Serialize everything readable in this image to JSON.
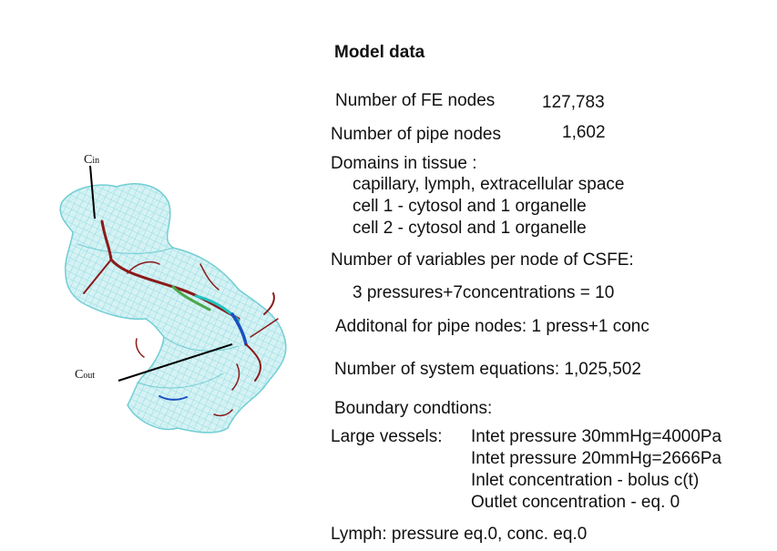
{
  "figure": {
    "label_in_main": "C",
    "label_in_sub": "in",
    "label_out_main": "C",
    "label_out_sub": "out"
  },
  "model": {
    "title": "Model data",
    "fe_nodes_label": "Number of FE nodes",
    "fe_nodes_value": "127,783",
    "pipe_nodes_label": "Number of pipe nodes",
    "pipe_nodes_value": "1,602",
    "domains_label": "Domains in tissue :",
    "domains": [
      "capillary, lymph, extracellular space",
      "cell 1 - cytosol and  1 organelle",
      "cell 2 - cytosol and  1 organelle"
    ],
    "variables_label": "Number of variables per node of CSFE:",
    "variables_value": "3 pressures+7concentrations = 10",
    "additional": "Additonal for pipe nodes: 1 press+1 conc",
    "equations": "Number of system equations: 1,025,502",
    "boundary_label": "Boundary condtions:",
    "large_vessels_label": "Large vessels:",
    "bc_lines": [
      "Intet pressure 30mmHg=4000Pa",
      "Intet pressure 20mmHg=2666Pa",
      "Inlet concentration - bolus c(t)",
      "Outlet concentration - eq. 0"
    ],
    "lymph": "Lymph: pressure eq.0, conc. eq.0"
  },
  "colors": {
    "mesh": "#7fd6dc",
    "mesh_fill": "#c8eef0",
    "vessel": "#8b1a1a"
  }
}
